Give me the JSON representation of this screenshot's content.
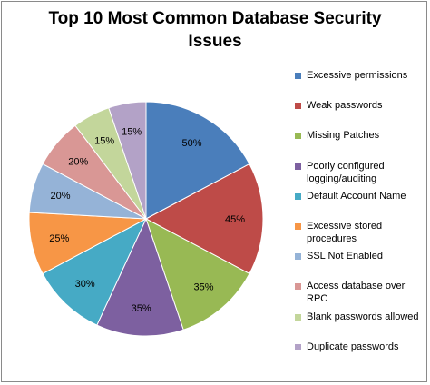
{
  "chart_data": {
    "type": "pie",
    "title_lines": [
      "Top 10 Most Common Database Security",
      "Issues"
    ],
    "categories": [
      "Excessive permissions",
      "Weak passwords",
      "Missing Patches",
      "Poorly configured logging/auditing",
      "Default Account Name",
      "Excessive stored procedures",
      "SSL Not Enabled",
      "Access database over RPC",
      "Blank passwords allowed",
      "Duplicate passwords"
    ],
    "values": [
      50,
      45,
      35,
      35,
      30,
      25,
      20,
      20,
      15,
      15
    ],
    "data_labels": [
      "50%",
      "45%",
      "35%",
      "35%",
      "30%",
      "25%",
      "20%",
      "20%",
      "15%",
      "15%"
    ],
    "colors": [
      "#4a7ebb",
      "#be4b48",
      "#98b954",
      "#7d60a0",
      "#46aac5",
      "#f79646",
      "#95b3d7",
      "#d99795",
      "#c3d69b",
      "#b3a2c7"
    ],
    "legend_position": "right"
  }
}
